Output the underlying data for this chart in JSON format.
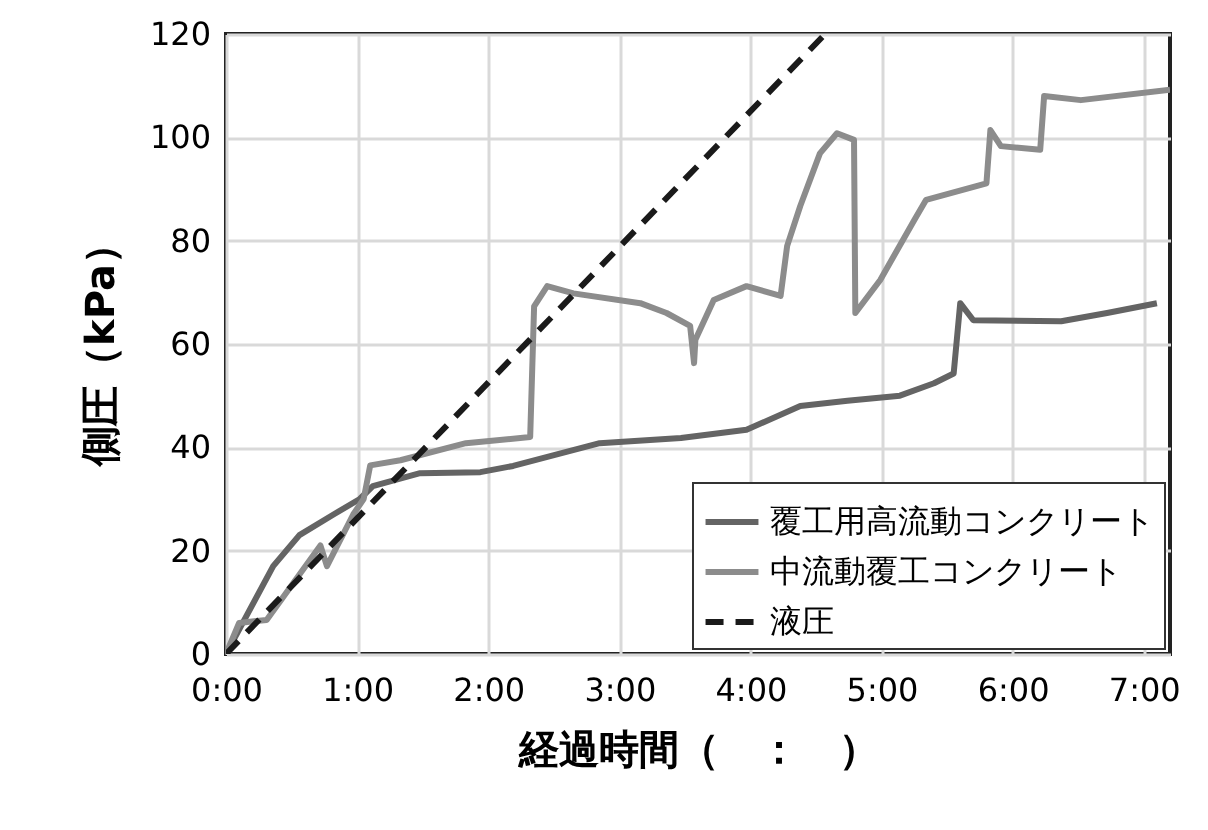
{
  "chart_data": {
    "type": "line",
    "xlabel": "経過時間（　：　）",
    "ylabel": "側圧（kPa）",
    "xlim": [
      0,
      7.2
    ],
    "ylim": [
      0,
      120
    ],
    "xticks": [
      {
        "value": 0,
        "label": "0:00"
      },
      {
        "value": 1,
        "label": "1:00"
      },
      {
        "value": 2,
        "label": "2:00"
      },
      {
        "value": 3,
        "label": "3:00"
      },
      {
        "value": 4,
        "label": "4:00"
      },
      {
        "value": 5,
        "label": "5:00"
      },
      {
        "value": 6,
        "label": "6:00"
      },
      {
        "value": 7,
        "label": "7:00"
      }
    ],
    "yticks": [
      0,
      20,
      40,
      60,
      80,
      100,
      120
    ],
    "grid": true,
    "legend": "bottom right",
    "series": [
      {
        "name": "覆工用高流動コンクリート",
        "color": "#646464",
        "line_style": "solid",
        "x": [
          0,
          0.36,
          0.56,
          0.82,
          1.02,
          1.12,
          1.48,
          1.94,
          2.19,
          2.85,
          3.47,
          3.97,
          4.38,
          4.74,
          5.14,
          5.4,
          5.55,
          5.6,
          5.7,
          6.37,
          6.72,
          7.1
        ],
        "values": [
          0,
          17,
          23,
          27,
          30,
          32.5,
          35,
          35.2,
          36.4,
          40.8,
          41.8,
          43.4,
          48,
          49,
          50,
          52.4,
          54.3,
          67.9,
          64.6,
          64.4,
          66,
          67.9
        ]
      },
      {
        "name": "中流動覆工コンクリート",
        "color": "#8c8c8c",
        "line_style": "solid",
        "x": [
          0,
          0.1,
          0.31,
          0.72,
          0.77,
          0.97,
          1.05,
          1.1,
          1.33,
          1.83,
          2.32,
          2.35,
          2.45,
          2.65,
          3.16,
          3.36,
          3.54,
          3.57,
          3.58,
          3.72,
          3.97,
          4.23,
          4.28,
          4.38,
          4.53,
          4.66,
          4.79,
          4.8,
          4.99,
          5.25,
          5.34,
          5.8,
          5.83,
          5.91,
          6.21,
          6.24,
          6.52,
          7.2
        ],
        "values": [
          0,
          6,
          6.6,
          21,
          17,
          27,
          30,
          36.5,
          37.5,
          40.8,
          42,
          67.3,
          71.2,
          69.8,
          67.9,
          66,
          63.5,
          56.3,
          60.8,
          68.5,
          71.2,
          69.3,
          79,
          86.7,
          96.9,
          100.8,
          99.5,
          66,
          72.4,
          84,
          87.9,
          91.1,
          101.4,
          98.3,
          97.6,
          108,
          107.2,
          109.2
        ]
      },
      {
        "name": "液圧",
        "color": "#1a1a1a",
        "line_style": "dashed",
        "x": [
          0,
          4.57
        ],
        "values": [
          0,
          120
        ]
      }
    ]
  }
}
